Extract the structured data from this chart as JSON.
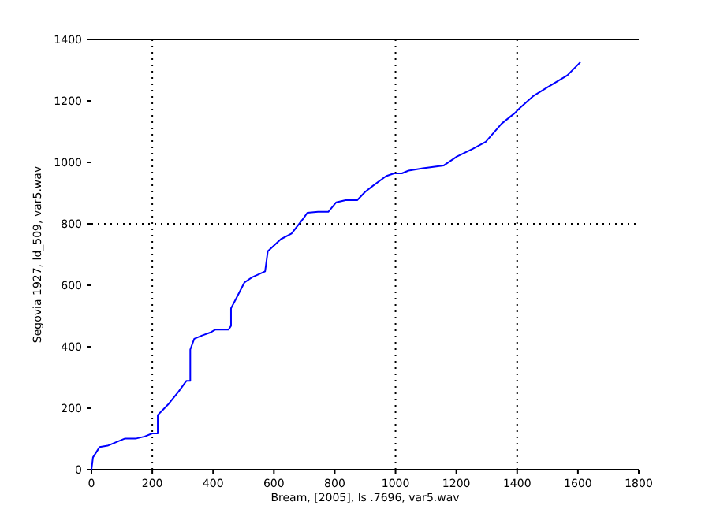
{
  "chart_data": {
    "type": "line",
    "xlabel": "Bream, [2005], ls .7696, var5.wav",
    "ylabel": "Segovia 1927, ld_509, var5.wav",
    "xlim": [
      0,
      1800
    ],
    "xticks": [
      0,
      200,
      400,
      600,
      800,
      1000,
      1200,
      1400,
      1600,
      1800
    ],
    "ylim": [
      0,
      1400
    ],
    "yticks": [
      0,
      200,
      400,
      600,
      800,
      1000,
      1200,
      1400
    ],
    "grid": false,
    "line_style": "solid",
    "marker": "none",
    "ref_lines": [
      {
        "axis": "x",
        "value": 200,
        "line_style": "dotted",
        "color": "#000000"
      },
      {
        "axis": "x",
        "value": 1000,
        "line_style": "dotted",
        "color": "#000000"
      },
      {
        "axis": "x",
        "value": 1400,
        "line_style": "dotted",
        "color": "#000000"
      },
      {
        "axis": "y",
        "value": 800,
        "line_style": "dotted",
        "color": "#000000"
      }
    ],
    "series": [
      {
        "color": "#0000ff",
        "x": [
          0,
          5,
          27,
          53,
          109,
          145,
          175,
          200,
          218,
          218,
          235,
          252,
          287,
          312,
          325,
          325,
          338,
          364,
          390,
          408,
          451,
          459,
          459,
          477,
          503,
          528,
          571,
          580,
          623,
          658,
          698,
          710,
          745,
          779,
          805,
          836,
          874,
          900,
          926,
          969,
          995,
          1021,
          1043,
          1090,
          1159,
          1202,
          1254,
          1297,
          1349,
          1392,
          1409,
          1452,
          1496,
          1565,
          1608
        ],
        "values": [
          0,
          40,
          74,
          78,
          101,
          101,
          108,
          118,
          118,
          178,
          195,
          212,
          255,
          289,
          289,
          391,
          426,
          437,
          446,
          456,
          456,
          468,
          525,
          559,
          609,
          626,
          645,
          711,
          750,
          768,
          819,
          836,
          839,
          839,
          870,
          877,
          877,
          904,
          924,
          955,
          964,
          964,
          973,
          981,
          990,
          1019,
          1044,
          1067,
          1126,
          1160,
          1177,
          1215,
          1242,
          1283,
          1326
        ]
      }
    ]
  }
}
